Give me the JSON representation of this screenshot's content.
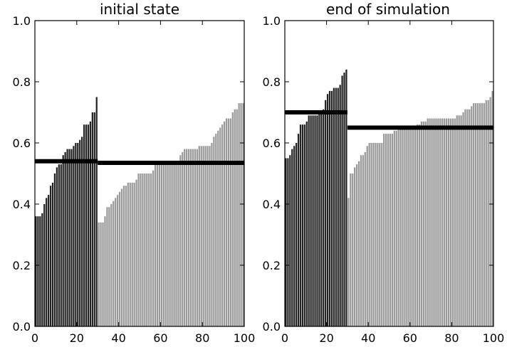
{
  "chart_data": [
    {
      "type": "bar",
      "title": "initial state",
      "xlim": [
        0,
        100
      ],
      "ylim": [
        0.0,
        1.0
      ],
      "xticks": [
        "0",
        "20",
        "40",
        "60",
        "80",
        "100"
      ],
      "yticks": [
        "0.0",
        "0.2",
        "0.4",
        "0.6",
        "0.8",
        "1.0"
      ],
      "grid": false,
      "series": [
        {
          "color": "#222222",
          "x_start": 0,
          "values": [
            0.36,
            0.36,
            0.36,
            0.37,
            0.4,
            0.42,
            0.43,
            0.46,
            0.47,
            0.5,
            0.52,
            0.53,
            0.53,
            0.56,
            0.57,
            0.58,
            0.58,
            0.58,
            0.59,
            0.6,
            0.6,
            0.61,
            0.62,
            0.66,
            0.66,
            0.66,
            0.67,
            0.7,
            0.7,
            0.75
          ]
        },
        {
          "color": "#999999",
          "x_start": 30,
          "values": [
            0.34,
            0.34,
            0.34,
            0.36,
            0.39,
            0.39,
            0.4,
            0.41,
            0.42,
            0.43,
            0.44,
            0.45,
            0.46,
            0.46,
            0.47,
            0.47,
            0.47,
            0.47,
            0.48,
            0.5,
            0.5,
            0.5,
            0.5,
            0.5,
            0.5,
            0.5,
            0.51,
            0.53,
            0.53,
            0.53,
            0.53,
            0.53,
            0.53,
            0.53,
            0.53,
            0.53,
            0.53,
            0.53,
            0.53,
            0.56,
            0.57,
            0.58,
            0.58,
            0.58,
            0.58,
            0.58,
            0.58,
            0.58,
            0.59,
            0.59,
            0.59,
            0.59,
            0.59,
            0.59,
            0.6,
            0.62,
            0.63,
            0.64,
            0.65,
            0.66,
            0.67,
            0.68,
            0.68,
            0.68,
            0.7,
            0.71,
            0.71,
            0.73,
            0.73,
            0.73
          ]
        }
      ],
      "hlines": [
        {
          "x_start": 0,
          "x_end": 30,
          "y": 0.54
        },
        {
          "x_start": 30,
          "x_end": 100,
          "y": 0.535
        }
      ]
    },
    {
      "type": "bar",
      "title": "end of simulation",
      "xlim": [
        0,
        100
      ],
      "ylim": [
        0.0,
        1.0
      ],
      "xticks": [
        "0",
        "20",
        "40",
        "60",
        "80",
        "100"
      ],
      "yticks": [
        "0.0",
        "0.2",
        "0.4",
        "0.6",
        "0.8",
        "1.0"
      ],
      "grid": false,
      "series": [
        {
          "color": "#222222",
          "x_start": 0,
          "values": [
            0.55,
            0.55,
            0.56,
            0.58,
            0.59,
            0.6,
            0.63,
            0.66,
            0.66,
            0.66,
            0.67,
            0.69,
            0.69,
            0.69,
            0.69,
            0.69,
            0.7,
            0.7,
            0.71,
            0.74,
            0.76,
            0.77,
            0.77,
            0.78,
            0.78,
            0.78,
            0.79,
            0.82,
            0.83,
            0.84
          ]
        },
        {
          "color": "#999999",
          "x_start": 30,
          "values": [
            0.42,
            0.5,
            0.5,
            0.52,
            0.53,
            0.54,
            0.56,
            0.56,
            0.57,
            0.59,
            0.6,
            0.6,
            0.6,
            0.6,
            0.6,
            0.6,
            0.6,
            0.63,
            0.63,
            0.63,
            0.63,
            0.63,
            0.64,
            0.64,
            0.65,
            0.65,
            0.65,
            0.65,
            0.65,
            0.65,
            0.65,
            0.65,
            0.65,
            0.66,
            0.66,
            0.67,
            0.67,
            0.67,
            0.68,
            0.68,
            0.68,
            0.68,
            0.68,
            0.68,
            0.68,
            0.68,
            0.68,
            0.68,
            0.68,
            0.68,
            0.68,
            0.68,
            0.69,
            0.69,
            0.69,
            0.7,
            0.71,
            0.71,
            0.71,
            0.72,
            0.73,
            0.73,
            0.73,
            0.73,
            0.73,
            0.73,
            0.74,
            0.74,
            0.75,
            0.77
          ]
        }
      ],
      "hlines": [
        {
          "x_start": 0,
          "x_end": 30,
          "y": 0.7
        },
        {
          "x_start": 30,
          "x_end": 100,
          "y": 0.65
        }
      ]
    }
  ]
}
